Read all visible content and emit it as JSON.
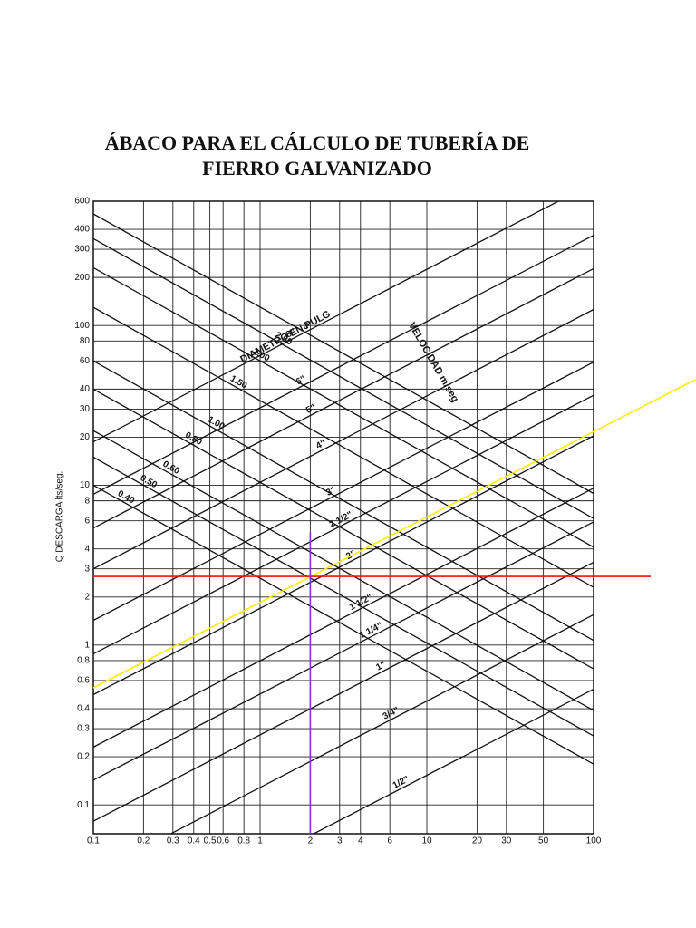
{
  "chart_data": {
    "type": "nomograph",
    "title": [
      "ÁBACO PARA EL CÁLCULO DE TUBERÍA DE",
      "FIERRO GALVANIZADO"
    ],
    "y_label": "Q DESCARGA lts/seg.",
    "annotations": [
      "DIAMETRO EN PULG",
      "VELOCIDAD m/seg"
    ],
    "log_x": true,
    "log_y": true,
    "grid": true,
    "xlim": [
      0.1,
      100
    ],
    "ylim": [
      0.066,
      600
    ],
    "xticks": [
      0.1,
      0.2,
      0.3,
      0.4,
      0.5,
      0.6,
      0.8,
      1,
      2,
      3,
      4,
      6,
      10,
      20,
      30,
      50,
      100
    ],
    "yticks": [
      0.1,
      0.2,
      0.3,
      0.4,
      0.6,
      0.8,
      1,
      2,
      3,
      4,
      6,
      8,
      10,
      20,
      30,
      40,
      60,
      80,
      100,
      200,
      300,
      400,
      600
    ],
    "line_color": "#111111",
    "diameter_lines": [
      {
        "name": "1/2\"",
        "x": [
          0.1,
          100
        ],
        "values": [
          0.0128,
          0.53
        ]
      },
      {
        "name": "3/4\"",
        "x": [
          0.1,
          100
        ],
        "values": [
          0.037,
          1.55
        ]
      },
      {
        "name": "1\"",
        "x": [
          0.1,
          100
        ],
        "values": [
          0.079,
          3.3
        ]
      },
      {
        "name": "1 1/4\"",
        "x": [
          0.1,
          100
        ],
        "values": [
          0.143,
          5.9
        ]
      },
      {
        "name": "1 1/2\"",
        "x": [
          0.1,
          100
        ],
        "values": [
          0.23,
          9.6
        ]
      },
      {
        "name": "2\"",
        "x": [
          0.1,
          100
        ],
        "values": [
          0.49,
          20.4
        ]
      },
      {
        "name": "2 1/2\"",
        "x": [
          0.1,
          100
        ],
        "values": [
          0.88,
          36.6
        ]
      },
      {
        "name": "3\"",
        "x": [
          0.1,
          100
        ],
        "values": [
          1.43,
          59
        ]
      },
      {
        "name": "4\"",
        "x": [
          0.1,
          100
        ],
        "values": [
          3.0,
          126
        ]
      },
      {
        "name": "5\"",
        "x": [
          0.1,
          100
        ],
        "values": [
          5.4,
          227
        ]
      },
      {
        "name": "6\"",
        "x": [
          0.1,
          100
        ],
        "values": [
          8.8,
          367
        ]
      },
      {
        "name": "8\"",
        "x": [
          0.1,
          100
        ],
        "values": [
          18.7,
          780
        ]
      }
    ],
    "velocity_lines": [
      {
        "name": "0.40",
        "x": [
          0.1,
          100
        ],
        "values": [
          10,
          0.18
        ]
      },
      {
        "name": "0.50",
        "x": [
          0.1,
          100
        ],
        "values": [
          15,
          0.27
        ]
      },
      {
        "name": "0.60",
        "x": [
          0.1,
          100
        ],
        "values": [
          22,
          0.39
        ]
      },
      {
        "name": "0.80",
        "x": [
          0.1,
          100
        ],
        "values": [
          40,
          0.71
        ]
      },
      {
        "name": "1.00",
        "x": [
          0.1,
          100
        ],
        "values": [
          60,
          1.07
        ]
      },
      {
        "name": "1.50",
        "x": [
          0.1,
          100
        ],
        "values": [
          130,
          2.3
        ]
      },
      {
        "name": "2.00",
        "x": [
          0.1,
          100
        ],
        "values": [
          230,
          4.1
        ]
      },
      {
        "name": "2.50",
        "x": [
          0.1,
          100
        ],
        "values": [
          350,
          6.2
        ]
      },
      {
        "name": "3",
        "x": [
          0.1,
          100
        ],
        "values": [
          500,
          8.9
        ]
      }
    ],
    "overlays": [
      {
        "color": "#ffee00",
        "x": [
          0.1,
          409
        ],
        "values": [
          0.54,
          46
        ]
      },
      {
        "color": "#ee1111",
        "x": [
          0.1,
          220
        ],
        "values": [
          2.69,
          2.69
        ]
      },
      {
        "color": "#8a2be2",
        "x": [
          2,
          2
        ],
        "values": [
          5.08,
          0.066
        ]
      }
    ]
  }
}
